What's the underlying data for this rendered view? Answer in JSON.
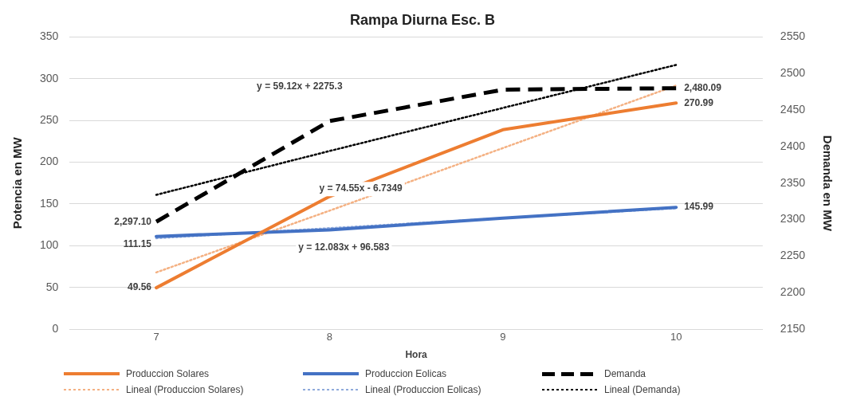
{
  "chart_data": {
    "type": "line",
    "title": "Rampa Diurna Esc. B",
    "xlabel": "Hora",
    "ylabel": "Potencia en MW",
    "y2label": "Demanda en MW",
    "categories": [
      "7",
      "8",
      "9",
      "10"
    ],
    "series": [
      {
        "name": "Produccion Solares",
        "color": "#ed7d31",
        "line_style": "solid",
        "values": [
          49.56,
          159,
          239,
          270.99
        ],
        "value_labels": [
          "49.56",
          null,
          null,
          "270.99"
        ]
      },
      {
        "name": "Produccion Eolicas",
        "color": "#4472c4",
        "line_style": "solid",
        "values": [
          111.15,
          119,
          133,
          145.99
        ],
        "value_labels": [
          "111.15",
          null,
          null,
          "145.99"
        ]
      },
      {
        "name": "Demanda",
        "color": "#000000",
        "line_style": "dashed",
        "axis": "y2",
        "values": [
          2297.1,
          2435,
          2478,
          2480.09
        ],
        "value_labels": [
          "2,297.10",
          null,
          null,
          "2,480.09"
        ]
      },
      {
        "name": "Lineal (Produccion Solares)",
        "color": "#f4b183",
        "line_style": "dotted",
        "values": [
          68,
          142,
          217,
          292
        ]
      },
      {
        "name": "Lineal (Produccion Eolicas)",
        "color": "#8faadc",
        "line_style": "dotted",
        "values": [
          109,
          121,
          133,
          145
        ]
      },
      {
        "name": "Lineal (Demanda)",
        "color": "#000000",
        "line_style": "dotted",
        "axis": "y2",
        "values": [
          2334,
          2394,
          2453,
          2512
        ]
      }
    ],
    "annotations": [
      "y = 59.12x + 2275.3",
      "y = 74.55x - 6.7349",
      "y = 12.083x + 96.583"
    ],
    "ylim": [
      0,
      350
    ],
    "yticks": [
      0,
      50,
      100,
      150,
      200,
      250,
      300,
      350
    ],
    "y2lim": [
      2150,
      2550
    ],
    "y2ticks": [
      2150,
      2200,
      2250,
      2300,
      2350,
      2400,
      2450,
      2500,
      2550
    ],
    "grid": "y",
    "legend": "bottom",
    "marker": "none"
  }
}
